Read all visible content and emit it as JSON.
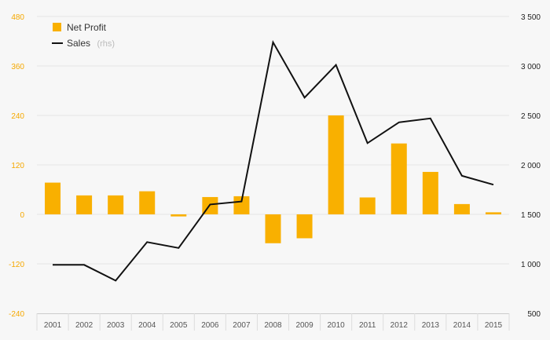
{
  "chart_data": {
    "type": "bar",
    "categories": [
      "2001",
      "2002",
      "2003",
      "2004",
      "2005",
      "2006",
      "2007",
      "2008",
      "2009",
      "2010",
      "2011",
      "2012",
      "2013",
      "2014",
      "2015"
    ],
    "series": [
      {
        "name": "Net Profit",
        "type": "bar",
        "axis": "left",
        "color": "#f9b000",
        "values": [
          77,
          46,
          46,
          56,
          -5,
          42,
          44,
          -70,
          -58,
          240,
          41,
          172,
          103,
          25,
          5
        ]
      },
      {
        "name": "Sales",
        "name_suffix": "(rhs)",
        "type": "line",
        "axis": "right",
        "color": "#111111",
        "values": [
          990,
          990,
          830,
          1220,
          1160,
          1600,
          1630,
          3240,
          2680,
          3010,
          2220,
          2430,
          2470,
          1890,
          1800
        ]
      }
    ],
    "left_axis": {
      "ylim": [
        -240,
        480
      ],
      "ticks": [
        480,
        360,
        240,
        120,
        0,
        -120,
        -240
      ],
      "tick_labels": [
        "480",
        "360",
        "240",
        "120",
        "0",
        "-120",
        "-240"
      ],
      "color": "#f5a800"
    },
    "right_axis": {
      "ylim": [
        500,
        3500
      ],
      "ticks": [
        3500,
        3000,
        2500,
        2000,
        1500,
        1000,
        500
      ],
      "tick_labels": [
        "3 500",
        "3 000",
        "2 500",
        "2 000",
        "1 500",
        "1 000",
        "500"
      ],
      "color": "#222222"
    },
    "grid": true,
    "legend_position": "top-left",
    "title": "",
    "xlabel": "",
    "ylabel": ""
  }
}
